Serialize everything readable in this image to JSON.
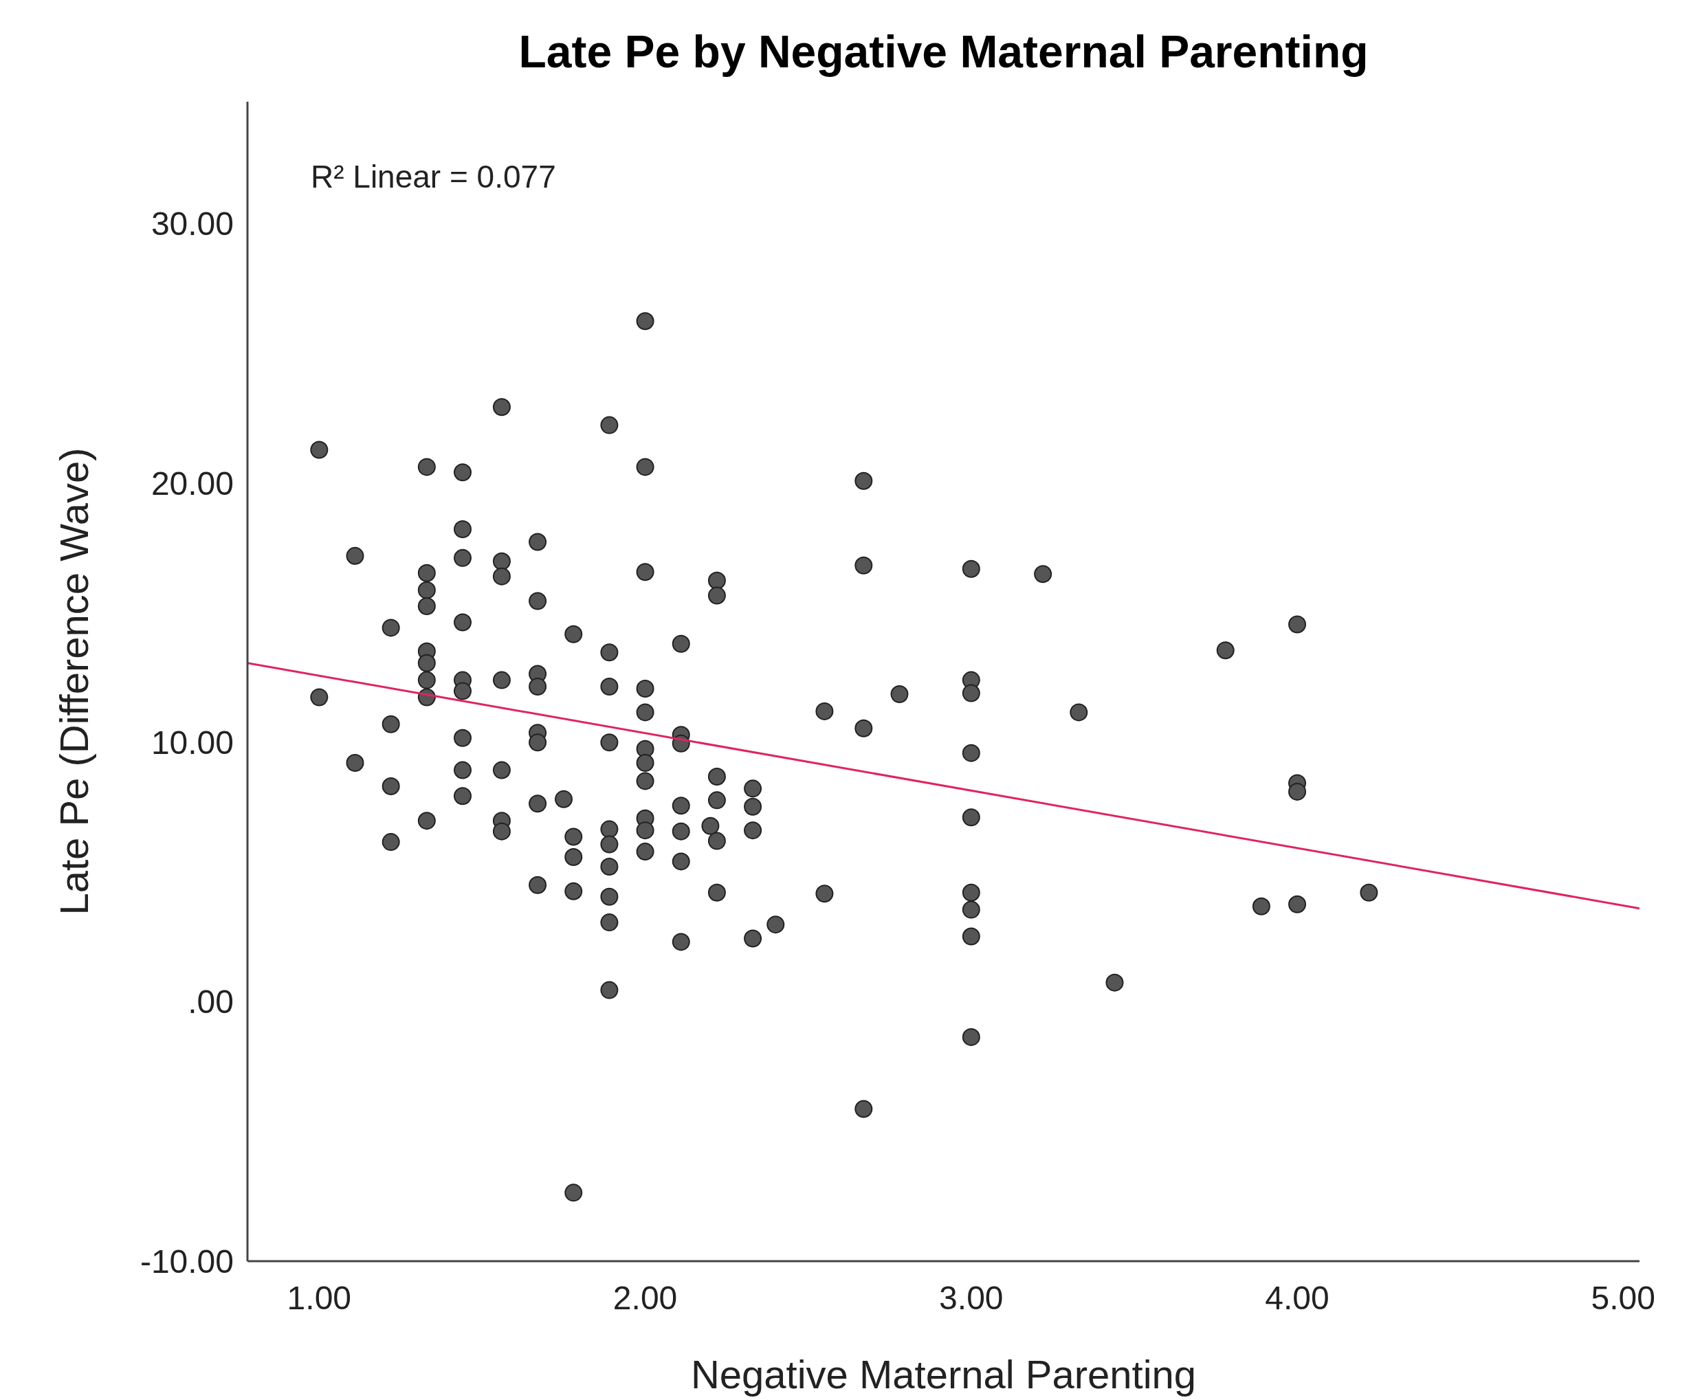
{
  "chart_data": {
    "type": "scatter",
    "title": "Late Pe by Negative Maternal Parenting",
    "xlabel": "Negative Maternal Parenting",
    "ylabel": "Late Pe (Difference Wave)",
    "annotations": [
      "R² Linear = 0.077"
    ],
    "xlim": [
      0.78,
      5.05
    ],
    "ylim": [
      -10,
      34.7
    ],
    "xticks": [
      {
        "value": 1,
        "label": "1.00"
      },
      {
        "value": 2,
        "label": "2.00"
      },
      {
        "value": 3,
        "label": "3.00"
      },
      {
        "value": 4,
        "label": "4.00"
      },
      {
        "value": 5,
        "label": "5.00"
      }
    ],
    "yticks": [
      {
        "value": -10,
        "label": "-10.00"
      },
      {
        "value": 0,
        "label": ".00"
      },
      {
        "value": 10,
        "label": "10.00"
      },
      {
        "value": 20,
        "label": "20.00"
      },
      {
        "value": 30,
        "label": "30.00"
      }
    ],
    "grid": false,
    "series": [
      {
        "color": "#555555",
        "marker": "circle",
        "x": [
          1.0,
          1.0,
          1.11,
          1.11,
          1.22,
          1.22,
          1.22,
          1.22,
          1.33,
          1.33,
          1.33,
          1.33,
          1.33,
          1.33,
          1.33,
          1.33,
          1.33,
          1.44,
          1.44,
          1.44,
          1.44,
          1.44,
          1.44,
          1.44,
          1.44,
          1.44,
          1.56,
          1.56,
          1.56,
          1.56,
          1.56,
          1.56,
          1.56,
          1.67,
          1.67,
          1.67,
          1.67,
          1.67,
          1.67,
          1.67,
          1.67,
          1.75,
          1.78,
          1.78,
          1.78,
          1.78,
          1.78,
          1.89,
          1.89,
          1.89,
          1.89,
          1.89,
          1.89,
          1.89,
          1.89,
          1.89,
          1.89,
          2.0,
          2.0,
          2.0,
          2.0,
          2.0,
          2.0,
          2.0,
          2.0,
          2.0,
          2.0,
          2.0,
          2.11,
          2.11,
          2.11,
          2.11,
          2.11,
          2.11,
          2.11,
          2.2,
          2.22,
          2.22,
          2.22,
          2.22,
          2.22,
          2.22,
          2.33,
          2.33,
          2.33,
          2.33,
          2.4,
          2.55,
          2.55,
          2.67,
          2.67,
          2.67,
          2.67,
          2.78,
          3.0,
          3.0,
          3.0,
          3.0,
          3.0,
          3.0,
          3.0,
          3.0,
          3.0,
          3.22,
          3.33,
          3.44,
          3.78,
          3.89,
          4.0,
          4.0,
          4.0,
          4.0,
          4.22
        ],
        "values": [
          21.28,
          11.74,
          17.19,
          9.21,
          14.42,
          10.7,
          8.31,
          6.16,
          20.62,
          16.53,
          15.87,
          15.25,
          13.51,
          13.06,
          12.4,
          11.74,
          6.98,
          20.41,
          18.22,
          17.11,
          14.63,
          12.4,
          11.98,
          10.17,
          8.93,
          7.93,
          22.93,
          16.98,
          16.4,
          12.4,
          8.93,
          6.98,
          6.57,
          17.73,
          15.45,
          12.64,
          12.15,
          10.37,
          10.0,
          7.64,
          4.5,
          7.81,
          14.17,
          6.36,
          5.58,
          4.26,
          -7.36,
          22.23,
          13.47,
          12.15,
          10.0,
          6.65,
          6.07,
          5.21,
          4.05,
          3.06,
          0.45,
          26.24,
          20.62,
          16.57,
          12.07,
          11.16,
          9.75,
          9.21,
          8.51,
          7.07,
          6.61,
          5.79,
          13.8,
          10.29,
          9.96,
          7.56,
          6.57,
          5.41,
          2.31,
          6.78,
          16.24,
          15.66,
          8.68,
          7.77,
          6.2,
          4.21,
          8.22,
          7.52,
          6.61,
          2.44,
          2.98,
          11.2,
          4.17,
          20.08,
          16.82,
          10.54,
          -4.13,
          11.86,
          16.69,
          12.4,
          11.9,
          9.59,
          7.11,
          4.21,
          3.55,
          2.52,
          -1.36,
          16.49,
          11.16,
          0.74,
          13.55,
          3.68,
          14.55,
          8.43,
          8.1,
          3.76,
          4.21
        ]
      },
      {
        "type": "line",
        "color": "#e0245e",
        "x": [
          0.78,
          5.05
        ],
        "values": [
          13.06,
          3.6
        ]
      }
    ]
  }
}
